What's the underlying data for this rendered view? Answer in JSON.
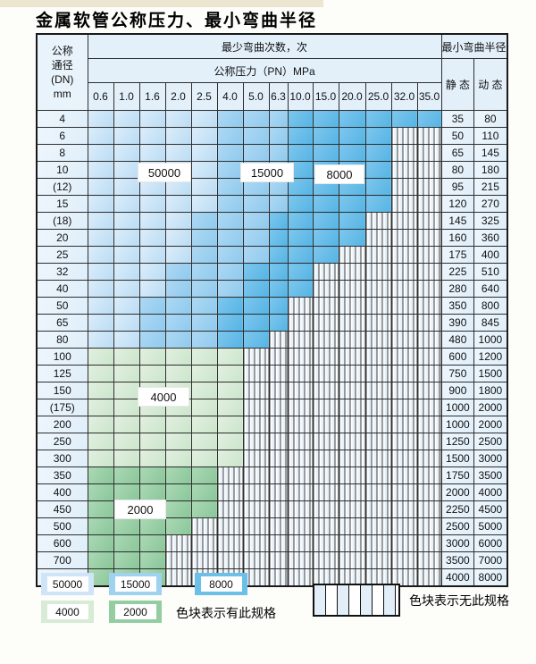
{
  "title": "金属软管公称压力、最小弯曲半径",
  "table": {
    "header": {
      "dn_lines": [
        "公称",
        "通径",
        "(DN)",
        "mm"
      ],
      "bend_cycles": "最少弯曲次数，次",
      "pressure": "公称压力（PN）MPa",
      "min_radius": "最小弯曲半径",
      "static": "静 态",
      "dynamic": "动 态",
      "pressures": [
        "0.6",
        "1.0",
        "1.6",
        "2.0",
        "2.5",
        "4.0",
        "5.0",
        "6.3",
        "10.0",
        "15.0",
        "20.0",
        "25.0",
        "32.0",
        "35.0"
      ]
    },
    "cell_legend": {
      "b1": "50000次区域",
      "b2": "15000次区域",
      "b3": "8000次区域",
      "g1": "4000次区域",
      "g2": "2000次区域",
      "x": "无此规格"
    },
    "rows": [
      {
        "dn": "4",
        "static": "35",
        "dynamic": "80",
        "cells": [
          "b1",
          "b1",
          "b1",
          "b1",
          "b1",
          "b2",
          "b2",
          "b2",
          "b3",
          "b3",
          "b3",
          "b3",
          "b3",
          "b3"
        ]
      },
      {
        "dn": "6",
        "static": "50",
        "dynamic": "110",
        "cells": [
          "b1",
          "b1",
          "b1",
          "b1",
          "b1",
          "b2",
          "b2",
          "b2",
          "b3",
          "b3",
          "b3",
          "b3",
          "x",
          "x"
        ]
      },
      {
        "dn": "8",
        "static": "65",
        "dynamic": "145",
        "cells": [
          "b1",
          "b1",
          "b1",
          "b1",
          "b1",
          "b2",
          "b2",
          "b2",
          "b3",
          "b3",
          "b3",
          "b3",
          "x",
          "x"
        ]
      },
      {
        "dn": "10",
        "static": "80",
        "dynamic": "180",
        "cells": [
          "b1",
          "b1",
          "b1",
          "b1",
          "b1",
          "b2",
          "b2",
          "b2",
          "b3",
          "b3",
          "b3",
          "b3",
          "x",
          "x"
        ]
      },
      {
        "dn": "(12)",
        "static": "95",
        "dynamic": "215",
        "cells": [
          "b1",
          "b1",
          "b1",
          "b1",
          "b1",
          "b2",
          "b2",
          "b2",
          "b3",
          "b3",
          "b3",
          "b3",
          "x",
          "x"
        ]
      },
      {
        "dn": "15",
        "static": "120",
        "dynamic": "270",
        "cells": [
          "b1",
          "b1",
          "b1",
          "b1",
          "b1",
          "b2",
          "b2",
          "b2",
          "b3",
          "b3",
          "b3",
          "b3",
          "x",
          "x"
        ]
      },
      {
        "dn": "(18)",
        "static": "145",
        "dynamic": "325",
        "cells": [
          "b1",
          "b1",
          "b1",
          "b1",
          "b2",
          "b2",
          "b2",
          "b3",
          "b3",
          "b3",
          "b3",
          "x",
          "x",
          "x"
        ]
      },
      {
        "dn": "20",
        "static": "160",
        "dynamic": "360",
        "cells": [
          "b1",
          "b1",
          "b1",
          "b1",
          "b2",
          "b2",
          "b2",
          "b3",
          "b3",
          "b3",
          "b3",
          "x",
          "x",
          "x"
        ]
      },
      {
        "dn": "25",
        "static": "175",
        "dynamic": "400",
        "cells": [
          "b1",
          "b1",
          "b1",
          "b1",
          "b2",
          "b2",
          "b2",
          "b3",
          "b3",
          "b3",
          "x",
          "x",
          "x",
          "x"
        ]
      },
      {
        "dn": "32",
        "static": "225",
        "dynamic": "510",
        "cells": [
          "b1",
          "b1",
          "b1",
          "b2",
          "b2",
          "b2",
          "b3",
          "b3",
          "b3",
          "x",
          "x",
          "x",
          "x",
          "x"
        ]
      },
      {
        "dn": "40",
        "static": "280",
        "dynamic": "640",
        "cells": [
          "b1",
          "b1",
          "b1",
          "b2",
          "b2",
          "b2",
          "b3",
          "b3",
          "b3",
          "x",
          "x",
          "x",
          "x",
          "x"
        ]
      },
      {
        "dn": "50",
        "static": "350",
        "dynamic": "800",
        "cells": [
          "b1",
          "b1",
          "b2",
          "b2",
          "b2",
          "b3",
          "b3",
          "b3",
          "x",
          "x",
          "x",
          "x",
          "x",
          "x"
        ]
      },
      {
        "dn": "65",
        "static": "390",
        "dynamic": "845",
        "cells": [
          "b1",
          "b1",
          "b2",
          "b2",
          "b2",
          "b3",
          "b3",
          "b3",
          "x",
          "x",
          "x",
          "x",
          "x",
          "x"
        ]
      },
      {
        "dn": "80",
        "static": "480",
        "dynamic": "1000",
        "cells": [
          "b1",
          "b1",
          "b2",
          "b2",
          "b2",
          "b3",
          "b3",
          "x",
          "x",
          "x",
          "x",
          "x",
          "x",
          "x"
        ]
      },
      {
        "dn": "100",
        "static": "600",
        "dynamic": "1200",
        "cells": [
          "g1",
          "g1",
          "g1",
          "g1",
          "g1",
          "g1",
          "x",
          "x",
          "x",
          "x",
          "x",
          "x",
          "x",
          "x"
        ]
      },
      {
        "dn": "125",
        "static": "750",
        "dynamic": "1500",
        "cells": [
          "g1",
          "g1",
          "g1",
          "g1",
          "g1",
          "g1",
          "x",
          "x",
          "x",
          "x",
          "x",
          "x",
          "x",
          "x"
        ]
      },
      {
        "dn": "150",
        "static": "900",
        "dynamic": "1800",
        "cells": [
          "g1",
          "g1",
          "g1",
          "g1",
          "g1",
          "g1",
          "x",
          "x",
          "x",
          "x",
          "x",
          "x",
          "x",
          "x"
        ]
      },
      {
        "dn": "(175)",
        "static": "1000",
        "dynamic": "2000",
        "cells": [
          "g1",
          "g1",
          "g1",
          "g1",
          "g1",
          "g1",
          "x",
          "x",
          "x",
          "x",
          "x",
          "x",
          "x",
          "x"
        ]
      },
      {
        "dn": "200",
        "static": "1000",
        "dynamic": "2000",
        "cells": [
          "g1",
          "g1",
          "g1",
          "g1",
          "g1",
          "g1",
          "x",
          "x",
          "x",
          "x",
          "x",
          "x",
          "x",
          "x"
        ]
      },
      {
        "dn": "250",
        "static": "1250",
        "dynamic": "2500",
        "cells": [
          "g1",
          "g1",
          "g1",
          "g1",
          "g1",
          "g1",
          "x",
          "x",
          "x",
          "x",
          "x",
          "x",
          "x",
          "x"
        ]
      },
      {
        "dn": "300",
        "static": "1500",
        "dynamic": "3000",
        "cells": [
          "g1",
          "g1",
          "g1",
          "g1",
          "g1",
          "g1",
          "x",
          "x",
          "x",
          "x",
          "x",
          "x",
          "x",
          "x"
        ]
      },
      {
        "dn": "350",
        "static": "1750",
        "dynamic": "3500",
        "cells": [
          "g2",
          "g2",
          "g2",
          "g2",
          "g2",
          "x",
          "x",
          "x",
          "x",
          "x",
          "x",
          "x",
          "x",
          "x"
        ]
      },
      {
        "dn": "400",
        "static": "2000",
        "dynamic": "4000",
        "cells": [
          "g2",
          "g2",
          "g2",
          "g2",
          "g2",
          "x",
          "x",
          "x",
          "x",
          "x",
          "x",
          "x",
          "x",
          "x"
        ]
      },
      {
        "dn": "450",
        "static": "2250",
        "dynamic": "4500",
        "cells": [
          "g2",
          "g2",
          "g2",
          "g2",
          "g2",
          "x",
          "x",
          "x",
          "x",
          "x",
          "x",
          "x",
          "x",
          "x"
        ]
      },
      {
        "dn": "500",
        "static": "2500",
        "dynamic": "5000",
        "cells": [
          "g2",
          "g2",
          "g2",
          "g2",
          "x",
          "x",
          "x",
          "x",
          "x",
          "x",
          "x",
          "x",
          "x",
          "x"
        ]
      },
      {
        "dn": "600",
        "static": "3000",
        "dynamic": "6000",
        "cells": [
          "g2",
          "g2",
          "g2",
          "x",
          "x",
          "x",
          "x",
          "x",
          "x",
          "x",
          "x",
          "x",
          "x",
          "x"
        ]
      },
      {
        "dn": "700",
        "static": "3500",
        "dynamic": "7000",
        "cells": [
          "g2",
          "g2",
          "g2",
          "x",
          "x",
          "x",
          "x",
          "x",
          "x",
          "x",
          "x",
          "x",
          "x",
          "x"
        ]
      },
      {
        "dn": "800",
        "static": "4000",
        "dynamic": "8000",
        "cells": [
          "g2",
          "g2",
          "g2",
          "x",
          "x",
          "x",
          "x",
          "x",
          "x",
          "x",
          "x",
          "x",
          "x",
          "x"
        ]
      }
    ]
  },
  "overlays": {
    "l50000": "50000",
    "l15000": "15000",
    "l8000": "8000",
    "l4000": "4000",
    "l2000": "2000"
  },
  "legend": {
    "items": [
      {
        "label": "50000",
        "shade": "b1"
      },
      {
        "label": "15000",
        "shade": "b2"
      },
      {
        "label": "8000",
        "shade": "b3"
      },
      {
        "label": "4000",
        "shade": "g1"
      },
      {
        "label": "2000",
        "shade": "g2"
      }
    ],
    "has_spec_text": "色块表示有此规格",
    "no_spec_text": "色块表示无此规格"
  },
  "colors": {
    "blue_50000": "#cfe4f7",
    "blue_15000": "#9fd1f0",
    "blue_8000": "#6cc0e8",
    "green_4000": "#d7ebd6",
    "green_2000": "#93cda1",
    "header_bg": "#e3f0fa",
    "border": "#2e2e2e",
    "top_strip": "#ece5cf"
  }
}
